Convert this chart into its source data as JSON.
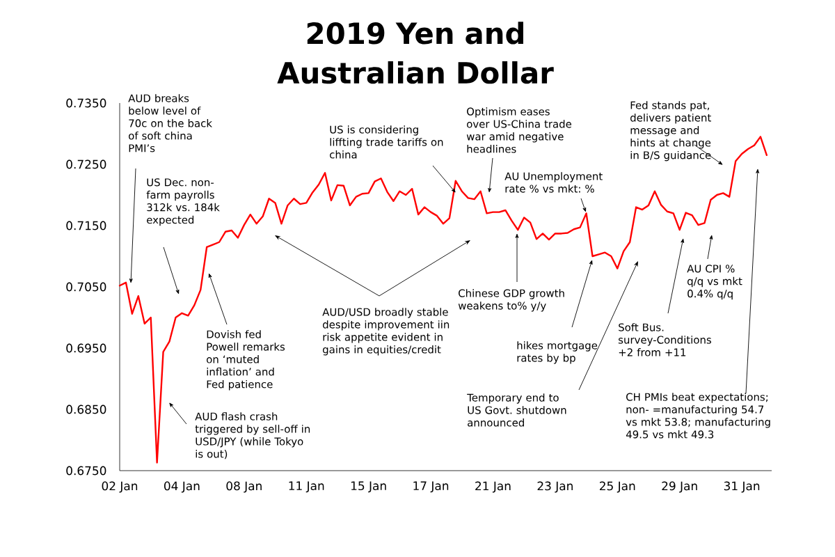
{
  "chart_data": {
    "type": "line",
    "title": "2019 Yen and Australian Dollar",
    "color": "#ff0000",
    "categories": [
      "02 Jan",
      null,
      null,
      null,
      null,
      null,
      null,
      null,
      null,
      null,
      "04 Jan",
      null,
      null,
      null,
      null,
      null,
      null,
      null,
      null,
      null,
      "08 Jan",
      null,
      null,
      null,
      null,
      null,
      null,
      null,
      null,
      null,
      "11 Jan",
      null,
      null,
      null,
      null,
      null,
      null,
      null,
      null,
      null,
      "15 Jan",
      null,
      null,
      null,
      null,
      null,
      null,
      null,
      null,
      null,
      "17 Jan",
      null,
      null,
      null,
      null,
      null,
      null,
      null,
      null,
      null,
      "21 Jan",
      null,
      null,
      null,
      null,
      null,
      null,
      null,
      null,
      null,
      "23 Jan",
      null,
      null,
      null,
      null,
      null,
      null,
      null,
      null,
      null,
      "25 Jan",
      null,
      null,
      null,
      null,
      null,
      null,
      null,
      null,
      null,
      "29 Jan",
      null,
      null,
      null,
      null,
      null,
      null,
      null,
      null,
      null,
      "31 Jan",
      null,
      null,
      null,
      null
    ],
    "values": [
      0.7052,
      0.7057,
      0.7006,
      0.7035,
      0.699,
      0.7,
      0.6763,
      0.6944,
      0.6961,
      0.7,
      0.7007,
      0.7003,
      0.702,
      0.7045,
      0.7115,
      0.7119,
      0.7123,
      0.714,
      0.7142,
      0.713,
      0.7151,
      0.7168,
      0.7153,
      0.7165,
      0.7194,
      0.7187,
      0.7153,
      0.7183,
      0.7194,
      0.7185,
      0.7187,
      0.7204,
      0.7217,
      0.7236,
      0.7191,
      0.7216,
      0.7215,
      0.7183,
      0.7197,
      0.7202,
      0.7203,
      0.7222,
      0.7227,
      0.7205,
      0.719,
      0.7206,
      0.72,
      0.721,
      0.7168,
      0.718,
      0.7172,
      0.7166,
      0.7153,
      0.7162,
      0.7223,
      0.7206,
      0.7195,
      0.7193,
      0.7206,
      0.717,
      0.7172,
      0.7172,
      0.7175,
      0.7158,
      0.7143,
      0.7163,
      0.7155,
      0.7128,
      0.7137,
      0.7127,
      0.7137,
      0.7137,
      0.7138,
      0.7144,
      0.7147,
      0.717,
      0.71,
      0.7103,
      0.7106,
      0.71,
      0.708,
      0.7108,
      0.7123,
      0.718,
      0.7176,
      0.7183,
      0.7206,
      0.7184,
      0.7173,
      0.717,
      0.7143,
      0.7171,
      0.7167,
      0.7151,
      0.7154,
      0.7192,
      0.72,
      0.7203,
      0.7197,
      0.7255,
      0.7267,
      0.7275,
      0.7281,
      0.7295,
      0.7265
    ],
    "ylim": [
      0.675,
      0.735
    ],
    "yticks": [
      {
        "value": 0.675,
        "label": "0.6750"
      },
      {
        "value": 0.685,
        "label": "0.6850"
      },
      {
        "value": 0.695,
        "label": "0.6950"
      },
      {
        "value": 0.705,
        "label": "0.7050"
      },
      {
        "value": 0.715,
        "label": "0.7150"
      },
      {
        "value": 0.725,
        "label": "0.7250"
      },
      {
        "value": 0.735,
        "label": "0.7350"
      }
    ],
    "annotations": [
      "AUD breaks below level of 70c on the back of soft china PMI’s",
      "US Dec. non-farm payrolls 312k vs. 184k expected",
      "Dovish fed Powell remarks on ‘muted inflation’ and Fed patience",
      "AUD flash crash triggered by sell-off in USD/JPY (while Tokyo is out)",
      "US is considering liffting trade tariffs on china",
      "Optimism eases over US-China trade war amid negative headlines",
      "AU Unemployment rate % vs mkt: %",
      "AUD/USD broadly stable despite improvement iin risk appetite evident in gains in equities/credit",
      "Chinese GDP growth weakens to% y/y",
      "hikes mortgage rates by bp",
      "Temporary end to US Govt. shutdown announced",
      "Soft Bus. survey-Conditions +2 from +11",
      "AU CPI % q/q vs mkt 0.4% q/q",
      "Fed stands pat, delivers patient message and hints at change in B/S guidance",
      "CH PMIs beat expectations; non- =manufacturing 54.7 vs mkt 53.8; manufacturing 49.5 vs mkt 49.3"
    ]
  }
}
